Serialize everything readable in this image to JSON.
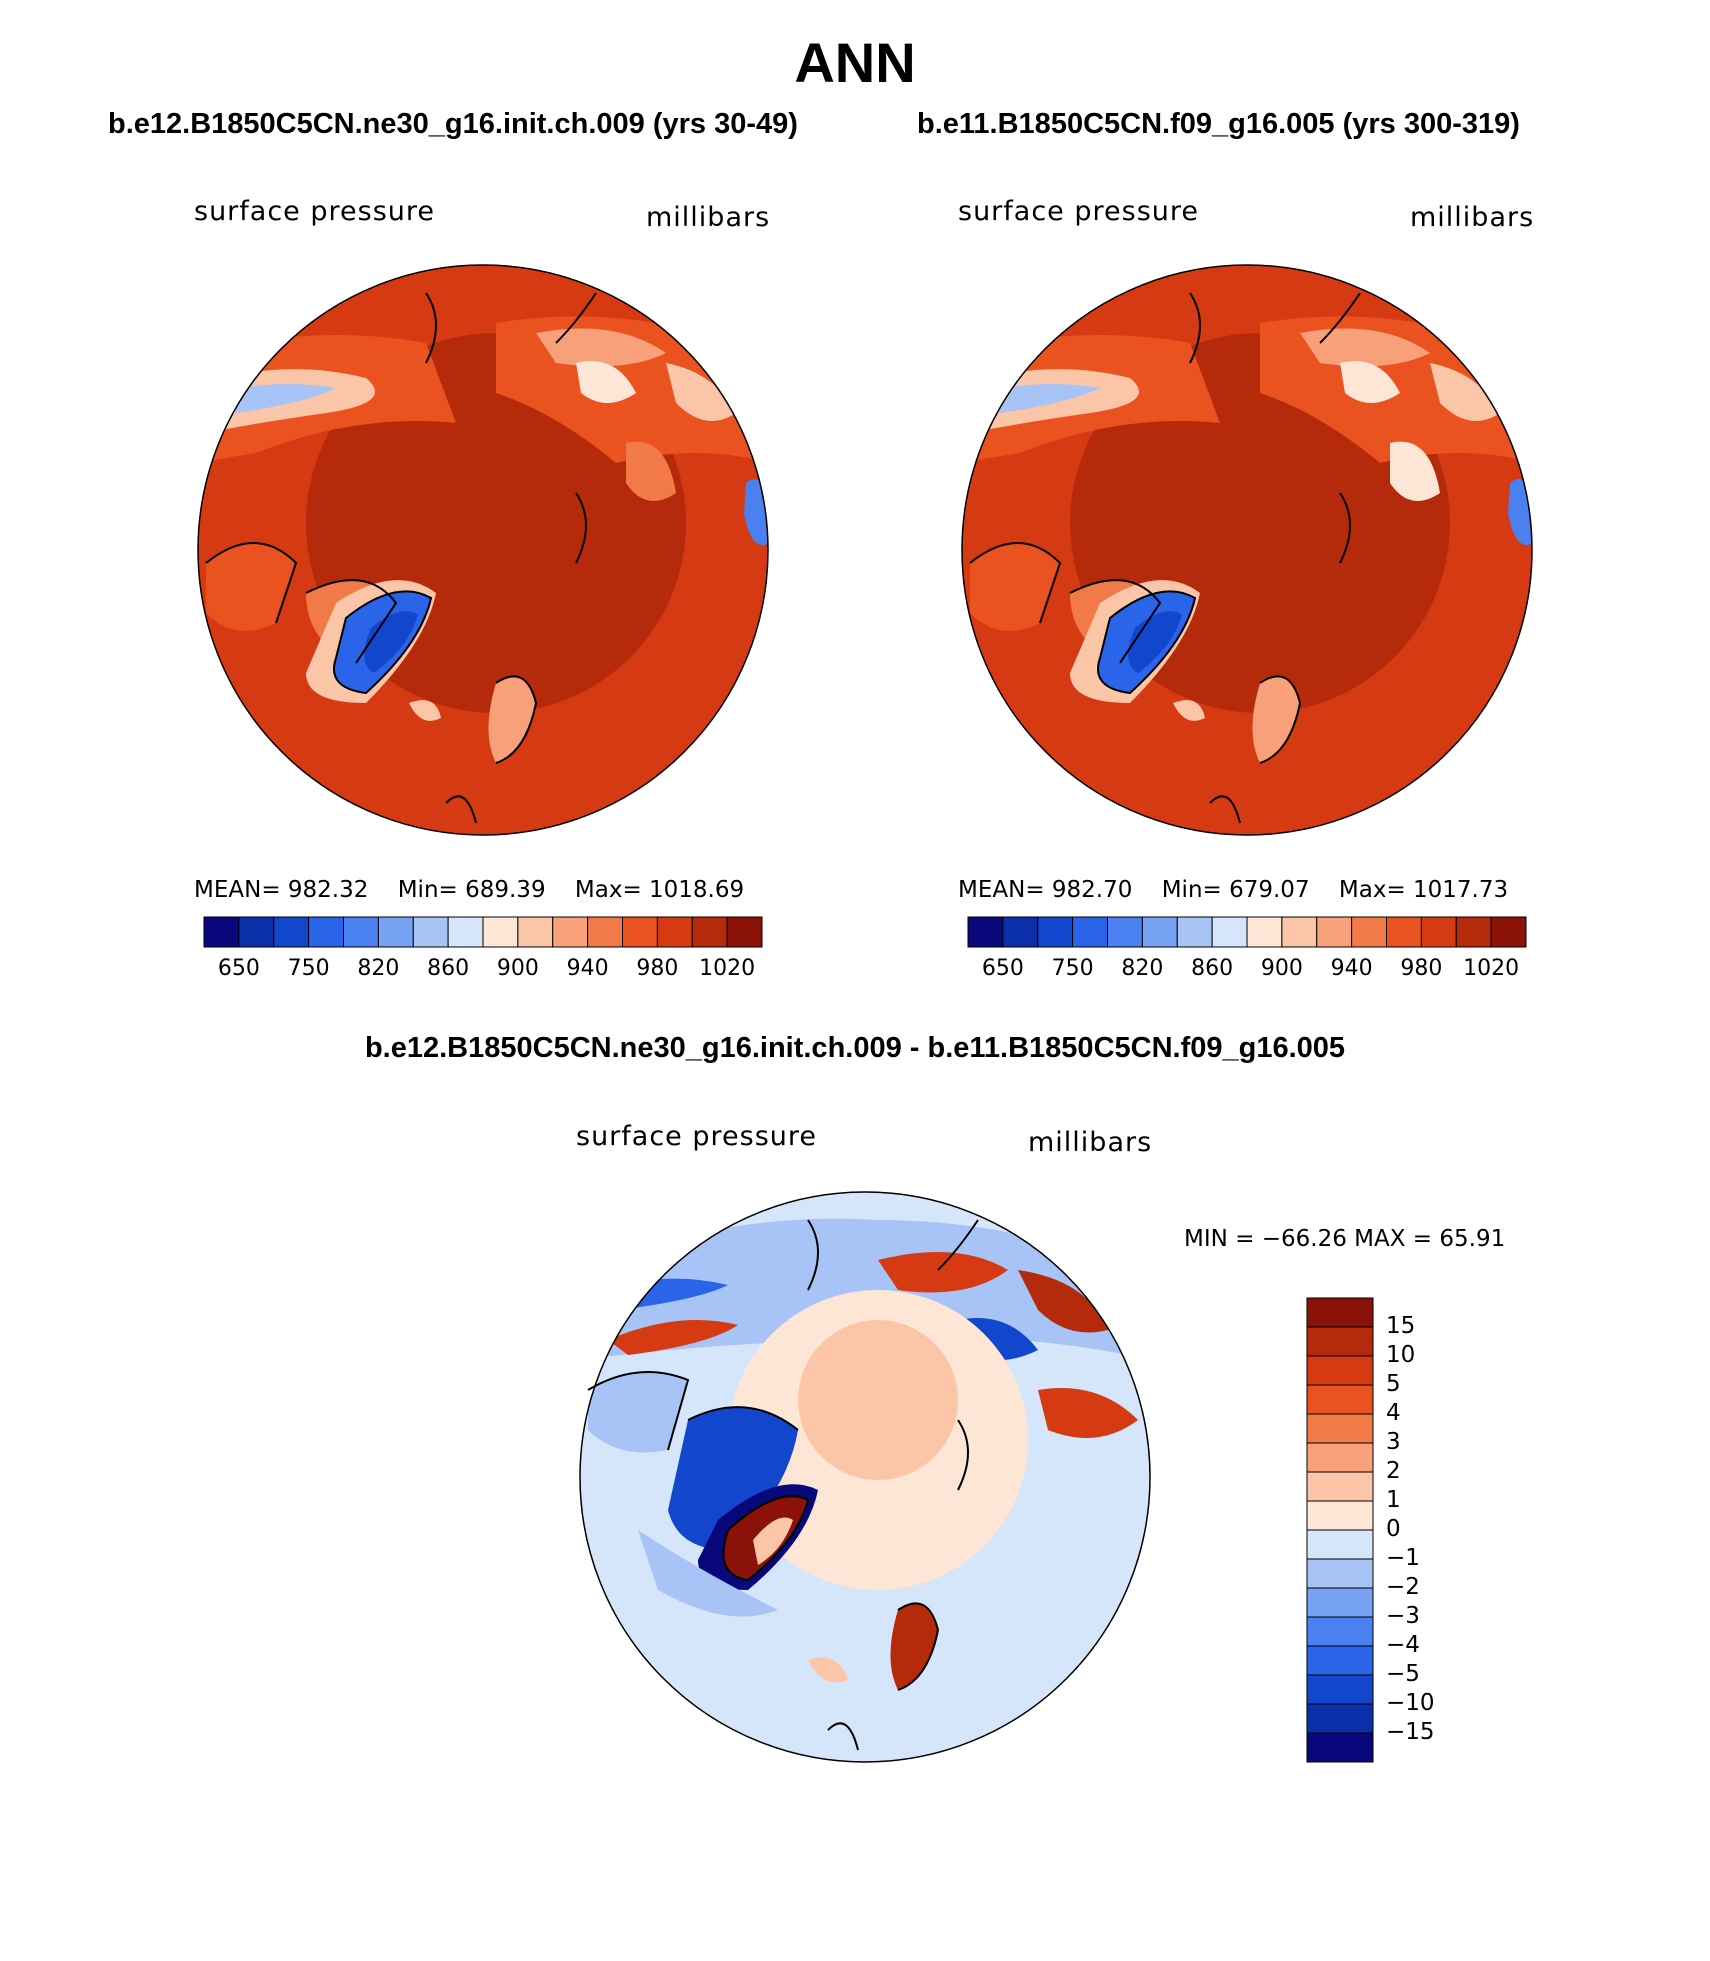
{
  "title": "ANN",
  "panels": [
    {
      "case": "b.e12.B1850C5CN.ne30_g16.init.ch.009 (yrs 30-49)",
      "variable": "surface pressure",
      "units": "millibars",
      "stats": {
        "mean": "MEAN= 982.32",
        "min": "Min= 689.39",
        "max": "Max= 1018.69"
      }
    },
    {
      "case": "b.e11.B1850C5CN.f09_g16.005 (yrs 300-319)",
      "variable": "surface pressure",
      "units": "millibars",
      "stats": {
        "mean": "MEAN= 982.70",
        "min": "Min= 679.07",
        "max": "Max= 1017.73"
      }
    }
  ],
  "abs_colorbar": {
    "labels": [
      "650",
      "750",
      "820",
      "860",
      "900",
      "940",
      "980",
      "1020"
    ],
    "colors": [
      "#08087a",
      "#0a2fa8",
      "#1246cc",
      "#2a64e8",
      "#4a80f0",
      "#78a2f4",
      "#a8c4f6",
      "#d6e6fa",
      "#fde6d6",
      "#fbc6a8",
      "#f7a07a",
      "#f27a48",
      "#ea5220",
      "#d63a12",
      "#b42a0a",
      "#8a1208"
    ]
  },
  "difference": {
    "title": "b.e12.B1850C5CN.ne30_g16.init.ch.009 - b.e11.B1850C5CN.f09_g16.005",
    "variable": "surface pressure",
    "units": "millibars",
    "minmax": "MIN = −66.26 MAX =   65.91",
    "colorbar": {
      "labels": [
        "15",
        "10",
        "5",
        "4",
        "3",
        "2",
        "1",
        "0",
        "−1",
        "−2",
        "−3",
        "−4",
        "−5",
        "−10",
        "−15"
      ],
      "colors": [
        "#8a1208",
        "#b42a0a",
        "#d63a12",
        "#ea5220",
        "#f27a48",
        "#f7a07a",
        "#fbc6a8",
        "#fde6d6",
        "#d6e6fa",
        "#a8c4f6",
        "#78a2f4",
        "#4a80f0",
        "#2a64e8",
        "#1246cc",
        "#0a2fa8",
        "#08087a"
      ]
    }
  }
}
